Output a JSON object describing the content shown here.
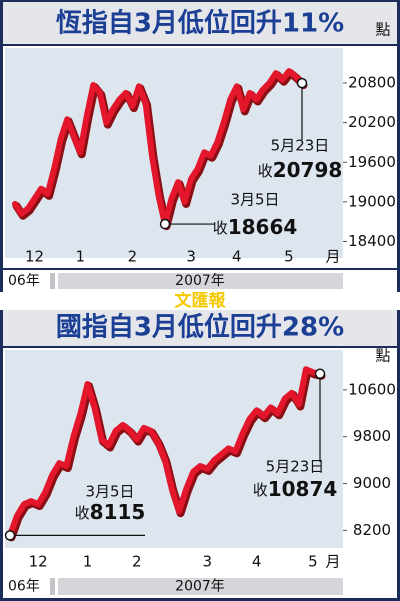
{
  "chart_data": [
    {
      "type": "line",
      "title": "恆指自3月低位回升11%",
      "unit": "點",
      "month_unit": "月",
      "years": [
        "06年",
        "2007年"
      ],
      "categories": [
        null,
        null,
        null,
        "12",
        null,
        null,
        null,
        null,
        null,
        null,
        "1",
        null,
        null,
        null,
        null,
        null,
        null,
        null,
        "2",
        null,
        null,
        null,
        null,
        null,
        null,
        null,
        null,
        "3",
        null,
        null,
        null,
        null,
        null,
        null,
        "4",
        null,
        null,
        null,
        null,
        null,
        null,
        null,
        "5",
        null,
        null
      ],
      "series": [
        {
          "name": "恆指",
          "color": "#e3162b",
          "values": [
            18970,
            18820,
            18900,
            19050,
            19200,
            19120,
            19500,
            19950,
            20250,
            20000,
            19750,
            20300,
            20770,
            20650,
            20200,
            20400,
            20550,
            20650,
            20450,
            20750,
            20500,
            19700,
            19100,
            18664,
            19050,
            19300,
            19000,
            19350,
            19500,
            19750,
            19700,
            19900,
            20200,
            20550,
            20750,
            20400,
            20650,
            20550,
            20700,
            20800,
            20950,
            20850,
            20980,
            20900,
            20798
          ]
        }
      ],
      "annotations": [
        {
          "date": "3月5日",
          "prefix": "收"
        },
        {
          "date": "5月23日",
          "prefix": "收"
        }
      ],
      "ylim": [
        18150,
        21300
      ],
      "yticks": [
        18400,
        19000,
        19600,
        20200,
        20800
      ],
      "grid": false
    },
    {
      "type": "line",
      "title": "國指自3月低位回升28%",
      "unit": "點",
      "month_unit": "月",
      "years": [
        "06年",
        "2007年"
      ],
      "categories": [
        null,
        null,
        null,
        null,
        "12",
        null,
        null,
        null,
        null,
        null,
        null,
        "1",
        null,
        null,
        null,
        null,
        null,
        null,
        "2",
        null,
        null,
        null,
        null,
        null,
        null,
        null,
        null,
        null,
        "3",
        null,
        null,
        null,
        null,
        null,
        null,
        "4",
        null,
        null,
        null,
        null,
        null,
        null,
        null,
        "5",
        null
      ],
      "series": [
        {
          "name": "國指",
          "color": "#e3162b",
          "values": [
            8115,
            8450,
            8650,
            8700,
            8650,
            8850,
            9150,
            9350,
            9300,
            9800,
            10200,
            10700,
            10300,
            9750,
            9650,
            9900,
            10000,
            9900,
            9750,
            9950,
            9900,
            9700,
            9400,
            8900,
            8528,
            8900,
            9200,
            9300,
            9250,
            9400,
            9500,
            9600,
            9550,
            9850,
            10100,
            10250,
            10150,
            10300,
            10200,
            10450,
            10550,
            10350,
            10950,
            10900,
            10874
          ]
        }
      ],
      "annotations": [
        {
          "date": "3月5日",
          "prefix": "收"
        },
        {
          "date": "5月23日",
          "prefix": "收"
        }
      ],
      "ylim": [
        7900,
        11280
      ],
      "yticks": [
        8200,
        9000,
        9800,
        10600
      ],
      "grid": false
    }
  ],
  "watermark": "文匯報"
}
